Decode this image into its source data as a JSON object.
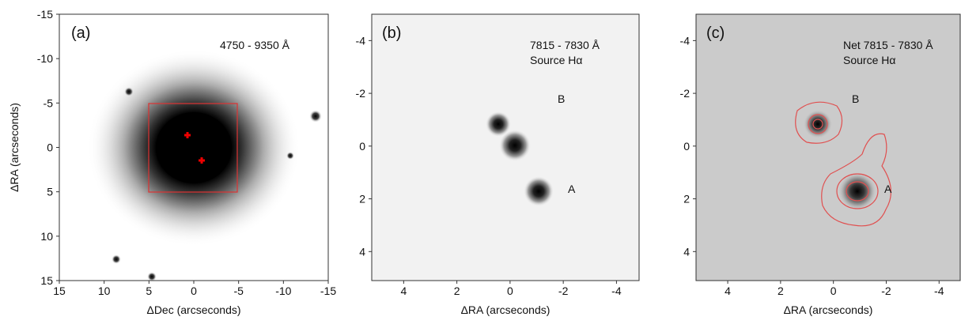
{
  "chart_data": [
    {
      "type": "image",
      "panel_label": "(a)",
      "annotation": [
        "4750 - 9350 Å"
      ],
      "xlabel": "ΔDec (arcseconds)",
      "ylabel": "ΔRA (arcseconds)",
      "xlim": [
        15,
        -15
      ],
      "ylim": [
        -15,
        15
      ],
      "xticks": [
        15,
        10,
        5,
        0,
        -5,
        -10,
        -15
      ],
      "yticks": [
        -15,
        -10,
        -5,
        0,
        5,
        10,
        15
      ]
    },
    {
      "type": "image",
      "panel_label": "(b)",
      "annotation": [
        "7815 - 7830 Å",
        "Source Hα"
      ],
      "sources": [
        "B",
        "A"
      ],
      "xlabel": "ΔRA (arcseconds)",
      "xlim": [
        5.2,
        -4.85
      ],
      "ylim": [
        -5,
        5.1
      ],
      "xticks": [
        4,
        2,
        0,
        -2,
        -4
      ],
      "yticks": [
        -4,
        -2,
        0,
        2,
        4
      ]
    },
    {
      "type": "image",
      "panel_label": "(c)",
      "annotation": [
        "Net 7815 - 7830 Å",
        "Source Hα"
      ],
      "sources": [
        "B",
        "A"
      ],
      "xlabel": "ΔRA (arcseconds)",
      "xlim": [
        5.2,
        -4.8
      ],
      "ylim": [
        -5,
        5.1
      ],
      "xticks": [
        4,
        2,
        0,
        -2,
        -4
      ],
      "yticks": [
        -4,
        -2,
        0,
        2,
        4
      ]
    }
  ]
}
